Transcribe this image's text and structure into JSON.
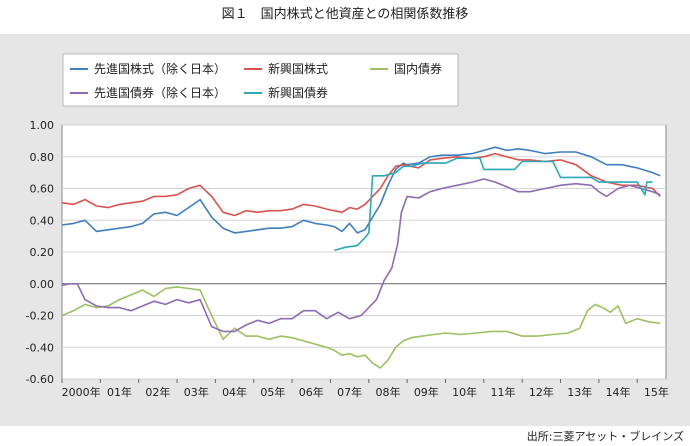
{
  "header": {
    "title": "図１　国内株式と他資産との相関係数推移"
  },
  "footer": {
    "source": "出所:三菱アセット・ブレインズ"
  },
  "chart_data": {
    "type": "line",
    "title": "図１　国内株式と他資産との相関係数推移",
    "xlabel": "",
    "ylabel": "",
    "ylim": [
      -0.6,
      1.0
    ],
    "yticks": [
      "1.00",
      "0.80",
      "0.60",
      "0.40",
      "0.20",
      "0.00",
      "-0.20",
      "-0.40",
      "-0.60"
    ],
    "categories": [
      "2000年",
      "01年",
      "02年",
      "03年",
      "04年",
      "05年",
      "06年",
      "07年",
      "08年",
      "09年",
      "10年",
      "11年",
      "12年",
      "13年",
      "14年",
      "15年"
    ],
    "grid": "horizontal",
    "legend_position": "top-left",
    "series": [
      {
        "name": "先進国株式（除く日本）",
        "color": "#3f7fc0",
        "points": [
          [
            2000.0,
            0.37
          ],
          [
            2000.3,
            0.38
          ],
          [
            2000.6,
            0.4
          ],
          [
            2000.9,
            0.33
          ],
          [
            2001.2,
            0.34
          ],
          [
            2001.5,
            0.35
          ],
          [
            2001.8,
            0.36
          ],
          [
            2002.1,
            0.38
          ],
          [
            2002.4,
            0.44
          ],
          [
            2002.7,
            0.45
          ],
          [
            2003.0,
            0.43
          ],
          [
            2003.3,
            0.48
          ],
          [
            2003.6,
            0.53
          ],
          [
            2003.9,
            0.42
          ],
          [
            2004.2,
            0.35
          ],
          [
            2004.5,
            0.32
          ],
          [
            2004.8,
            0.33
          ],
          [
            2005.1,
            0.34
          ],
          [
            2005.4,
            0.35
          ],
          [
            2005.7,
            0.35
          ],
          [
            2006.0,
            0.36
          ],
          [
            2006.3,
            0.4
          ],
          [
            2006.6,
            0.38
          ],
          [
            2006.9,
            0.37
          ],
          [
            2007.1,
            0.36
          ],
          [
            2007.3,
            0.33
          ],
          [
            2007.5,
            0.38
          ],
          [
            2007.7,
            0.32
          ],
          [
            2007.9,
            0.34
          ],
          [
            2008.1,
            0.42
          ],
          [
            2008.3,
            0.5
          ],
          [
            2008.5,
            0.62
          ],
          [
            2008.7,
            0.72
          ],
          [
            2008.9,
            0.76
          ],
          [
            2009.0,
            0.75
          ],
          [
            2009.3,
            0.76
          ],
          [
            2009.6,
            0.8
          ],
          [
            2009.9,
            0.81
          ],
          [
            2010.3,
            0.81
          ],
          [
            2010.7,
            0.82
          ],
          [
            2011.0,
            0.84
          ],
          [
            2011.3,
            0.86
          ],
          [
            2011.6,
            0.84
          ],
          [
            2011.9,
            0.85
          ],
          [
            2012.2,
            0.84
          ],
          [
            2012.6,
            0.82
          ],
          [
            2013.0,
            0.83
          ],
          [
            2013.4,
            0.83
          ],
          [
            2013.8,
            0.8
          ],
          [
            2014.2,
            0.75
          ],
          [
            2014.6,
            0.75
          ],
          [
            2015.0,
            0.73
          ],
          [
            2015.4,
            0.7
          ],
          [
            2015.6,
            0.68
          ]
        ]
      },
      {
        "name": "新興国株式",
        "color": "#d9534f",
        "points": [
          [
            2000.0,
            0.51
          ],
          [
            2000.3,
            0.5
          ],
          [
            2000.6,
            0.53
          ],
          [
            2000.9,
            0.49
          ],
          [
            2001.2,
            0.48
          ],
          [
            2001.5,
            0.5
          ],
          [
            2001.8,
            0.51
          ],
          [
            2002.1,
            0.52
          ],
          [
            2002.4,
            0.55
          ],
          [
            2002.7,
            0.55
          ],
          [
            2003.0,
            0.56
          ],
          [
            2003.3,
            0.6
          ],
          [
            2003.6,
            0.62
          ],
          [
            2003.9,
            0.55
          ],
          [
            2004.2,
            0.45
          ],
          [
            2004.5,
            0.43
          ],
          [
            2004.8,
            0.46
          ],
          [
            2005.1,
            0.45
          ],
          [
            2005.4,
            0.46
          ],
          [
            2005.7,
            0.46
          ],
          [
            2006.0,
            0.47
          ],
          [
            2006.3,
            0.5
          ],
          [
            2006.6,
            0.49
          ],
          [
            2006.9,
            0.47
          ],
          [
            2007.1,
            0.46
          ],
          [
            2007.3,
            0.45
          ],
          [
            2007.5,
            0.48
          ],
          [
            2007.7,
            0.47
          ],
          [
            2007.9,
            0.5
          ],
          [
            2008.1,
            0.55
          ],
          [
            2008.3,
            0.6
          ],
          [
            2008.5,
            0.68
          ],
          [
            2008.7,
            0.74
          ],
          [
            2008.9,
            0.75
          ],
          [
            2009.1,
            0.74
          ],
          [
            2009.3,
            0.73
          ],
          [
            2009.6,
            0.78
          ],
          [
            2009.9,
            0.79
          ],
          [
            2010.3,
            0.8
          ],
          [
            2010.7,
            0.79
          ],
          [
            2011.0,
            0.8
          ],
          [
            2011.3,
            0.82
          ],
          [
            2011.6,
            0.8
          ],
          [
            2011.9,
            0.78
          ],
          [
            2012.2,
            0.78
          ],
          [
            2012.6,
            0.77
          ],
          [
            2013.0,
            0.78
          ],
          [
            2013.4,
            0.75
          ],
          [
            2013.8,
            0.68
          ],
          [
            2014.2,
            0.64
          ],
          [
            2014.6,
            0.62
          ],
          [
            2015.0,
            0.62
          ],
          [
            2015.4,
            0.6
          ],
          [
            2015.6,
            0.55
          ]
        ]
      },
      {
        "name": "国内債券",
        "color": "#9ebf62",
        "points": [
          [
            2000.0,
            -0.2
          ],
          [
            2000.3,
            -0.17
          ],
          [
            2000.6,
            -0.13
          ],
          [
            2000.9,
            -0.15
          ],
          [
            2001.2,
            -0.14
          ],
          [
            2001.5,
            -0.1
          ],
          [
            2001.8,
            -0.07
          ],
          [
            2002.1,
            -0.04
          ],
          [
            2002.4,
            -0.08
          ],
          [
            2002.7,
            -0.03
          ],
          [
            2003.0,
            -0.02
          ],
          [
            2003.3,
            -0.03
          ],
          [
            2003.6,
            -0.04
          ],
          [
            2003.9,
            -0.2
          ],
          [
            2004.2,
            -0.35
          ],
          [
            2004.5,
            -0.28
          ],
          [
            2004.8,
            -0.33
          ],
          [
            2005.1,
            -0.33
          ],
          [
            2005.4,
            -0.35
          ],
          [
            2005.7,
            -0.33
          ],
          [
            2006.0,
            -0.34
          ],
          [
            2006.3,
            -0.36
          ],
          [
            2006.6,
            -0.38
          ],
          [
            2006.9,
            -0.4
          ],
          [
            2007.1,
            -0.42
          ],
          [
            2007.3,
            -0.45
          ],
          [
            2007.5,
            -0.44
          ],
          [
            2007.7,
            -0.46
          ],
          [
            2007.9,
            -0.45
          ],
          [
            2008.1,
            -0.5
          ],
          [
            2008.3,
            -0.53
          ],
          [
            2008.5,
            -0.48
          ],
          [
            2008.7,
            -0.4
          ],
          [
            2008.9,
            -0.36
          ],
          [
            2009.1,
            -0.34
          ],
          [
            2009.4,
            -0.33
          ],
          [
            2009.7,
            -0.32
          ],
          [
            2010.0,
            -0.31
          ],
          [
            2010.4,
            -0.32
          ],
          [
            2010.8,
            -0.31
          ],
          [
            2011.2,
            -0.3
          ],
          [
            2011.6,
            -0.3
          ],
          [
            2012.0,
            -0.33
          ],
          [
            2012.4,
            -0.33
          ],
          [
            2012.8,
            -0.32
          ],
          [
            2013.2,
            -0.31
          ],
          [
            2013.5,
            -0.28
          ],
          [
            2013.7,
            -0.17
          ],
          [
            2013.9,
            -0.13
          ],
          [
            2014.1,
            -0.15
          ],
          [
            2014.3,
            -0.18
          ],
          [
            2014.5,
            -0.14
          ],
          [
            2014.7,
            -0.25
          ],
          [
            2015.0,
            -0.22
          ],
          [
            2015.3,
            -0.24
          ],
          [
            2015.6,
            -0.25
          ]
        ]
      },
      {
        "name": "先進国債券（除く日本）",
        "color": "#8e6bb5",
        "points": [
          [
            2000.0,
            -0.01
          ],
          [
            2000.2,
            0.0
          ],
          [
            2000.4,
            0.0
          ],
          [
            2000.6,
            -0.1
          ],
          [
            2000.9,
            -0.14
          ],
          [
            2001.2,
            -0.15
          ],
          [
            2001.5,
            -0.15
          ],
          [
            2001.8,
            -0.17
          ],
          [
            2002.1,
            -0.14
          ],
          [
            2002.4,
            -0.11
          ],
          [
            2002.7,
            -0.13
          ],
          [
            2003.0,
            -0.1
          ],
          [
            2003.3,
            -0.12
          ],
          [
            2003.6,
            -0.1
          ],
          [
            2003.9,
            -0.27
          ],
          [
            2004.2,
            -0.3
          ],
          [
            2004.5,
            -0.3
          ],
          [
            2004.8,
            -0.26
          ],
          [
            2005.1,
            -0.23
          ],
          [
            2005.4,
            -0.25
          ],
          [
            2005.7,
            -0.22
          ],
          [
            2006.0,
            -0.22
          ],
          [
            2006.3,
            -0.17
          ],
          [
            2006.6,
            -0.17
          ],
          [
            2006.9,
            -0.22
          ],
          [
            2007.2,
            -0.18
          ],
          [
            2007.5,
            -0.22
          ],
          [
            2007.8,
            -0.2
          ],
          [
            2008.0,
            -0.15
          ],
          [
            2008.2,
            -0.1
          ],
          [
            2008.4,
            0.02
          ],
          [
            2008.6,
            0.1
          ],
          [
            2008.75,
            0.25
          ],
          [
            2008.85,
            0.45
          ],
          [
            2009.0,
            0.55
          ],
          [
            2009.3,
            0.54
          ],
          [
            2009.6,
            0.58
          ],
          [
            2009.9,
            0.6
          ],
          [
            2010.3,
            0.62
          ],
          [
            2010.7,
            0.64
          ],
          [
            2011.0,
            0.66
          ],
          [
            2011.3,
            0.64
          ],
          [
            2011.6,
            0.61
          ],
          [
            2011.9,
            0.58
          ],
          [
            2012.2,
            0.58
          ],
          [
            2012.6,
            0.6
          ],
          [
            2013.0,
            0.62
          ],
          [
            2013.4,
            0.63
          ],
          [
            2013.8,
            0.62
          ],
          [
            2014.0,
            0.58
          ],
          [
            2014.2,
            0.55
          ],
          [
            2014.5,
            0.6
          ],
          [
            2014.8,
            0.62
          ],
          [
            2015.1,
            0.6
          ],
          [
            2015.4,
            0.58
          ],
          [
            2015.6,
            0.56
          ]
        ]
      },
      {
        "name": "新興国債券",
        "color": "#2aa9b8",
        "points": [
          [
            2007.1,
            0.21
          ],
          [
            2007.4,
            0.23
          ],
          [
            2007.7,
            0.24
          ],
          [
            2007.9,
            0.29
          ],
          [
            2008.0,
            0.32
          ],
          [
            2008.1,
            0.68
          ],
          [
            2008.4,
            0.68
          ],
          [
            2008.7,
            0.7
          ],
          [
            2008.9,
            0.74
          ],
          [
            2009.1,
            0.74
          ],
          [
            2009.4,
            0.76
          ],
          [
            2009.7,
            0.76
          ],
          [
            2010.0,
            0.76
          ],
          [
            2010.3,
            0.79
          ],
          [
            2010.6,
            0.79
          ],
          [
            2010.9,
            0.79
          ],
          [
            2011.0,
            0.72
          ],
          [
            2011.4,
            0.72
          ],
          [
            2011.8,
            0.72
          ],
          [
            2012.0,
            0.77
          ],
          [
            2012.4,
            0.77
          ],
          [
            2012.8,
            0.77
          ],
          [
            2013.0,
            0.67
          ],
          [
            2013.4,
            0.67
          ],
          [
            2013.8,
            0.67
          ],
          [
            2014.0,
            0.64
          ],
          [
            2014.4,
            0.64
          ],
          [
            2014.8,
            0.64
          ],
          [
            2015.0,
            0.64
          ],
          [
            2015.2,
            0.56
          ],
          [
            2015.25,
            0.64
          ],
          [
            2015.4,
            0.64
          ]
        ]
      }
    ]
  }
}
